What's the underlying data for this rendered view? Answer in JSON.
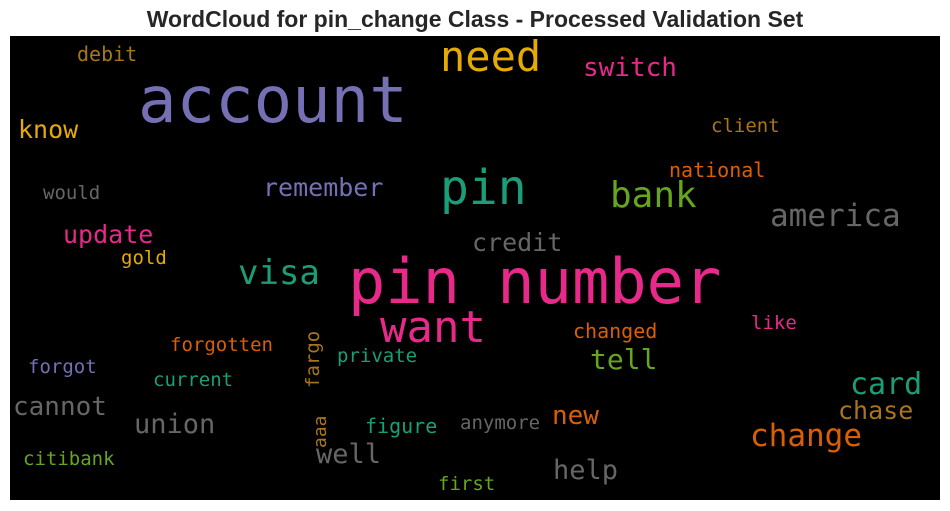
{
  "title": "WordCloud for pin_change Class - Processed Validation Set",
  "words": [
    {
      "text": "account",
      "color": "#7570b3"
    },
    {
      "text": "pin number",
      "color": "#e7298a"
    },
    {
      "text": "pin",
      "color": "#1b9e77"
    },
    {
      "text": "need",
      "color": "#e6ab02"
    },
    {
      "text": "want",
      "color": "#e7298a"
    },
    {
      "text": "bank",
      "color": "#66a61e"
    },
    {
      "text": "america",
      "color": "#666666"
    },
    {
      "text": "visa",
      "color": "#1b9e77"
    },
    {
      "text": "switch",
      "color": "#e7298a"
    },
    {
      "text": "card",
      "color": "#1b9e77"
    },
    {
      "text": "change",
      "color": "#d95f02"
    },
    {
      "text": "remember",
      "color": "#7570b3"
    },
    {
      "text": "update",
      "color": "#e7298a"
    },
    {
      "text": "know",
      "color": "#e6ab02"
    },
    {
      "text": "credit",
      "color": "#666666"
    },
    {
      "text": "cannot",
      "color": "#666666"
    },
    {
      "text": "union",
      "color": "#666666"
    },
    {
      "text": "tell",
      "color": "#66a61e"
    },
    {
      "text": "chase",
      "color": "#a6761d"
    },
    {
      "text": "new",
      "color": "#d95f02"
    },
    {
      "text": "help",
      "color": "#666666"
    },
    {
      "text": "well",
      "color": "#666666"
    },
    {
      "text": "debit",
      "color": "#a6761d"
    },
    {
      "text": "client",
      "color": "#a6761d"
    },
    {
      "text": "national",
      "color": "#d95f02"
    },
    {
      "text": "would",
      "color": "#666666"
    },
    {
      "text": "gold",
      "color": "#e6ab02"
    },
    {
      "text": "forgotten",
      "color": "#d95f02"
    },
    {
      "text": "changed",
      "color": "#d95f02"
    },
    {
      "text": "like",
      "color": "#e7298a"
    },
    {
      "text": "forgot",
      "color": "#7570b3"
    },
    {
      "text": "private",
      "color": "#1b9e77"
    },
    {
      "text": "current",
      "color": "#1b9e77"
    },
    {
      "text": "fargo",
      "color": "#a6761d"
    },
    {
      "text": "figure",
      "color": "#1b9e77"
    },
    {
      "text": "anymore",
      "color": "#666666"
    },
    {
      "text": "aaa",
      "color": "#a6761d"
    },
    {
      "text": "citibank",
      "color": "#66a61e"
    },
    {
      "text": "first",
      "color": "#66a61e"
    }
  ]
}
